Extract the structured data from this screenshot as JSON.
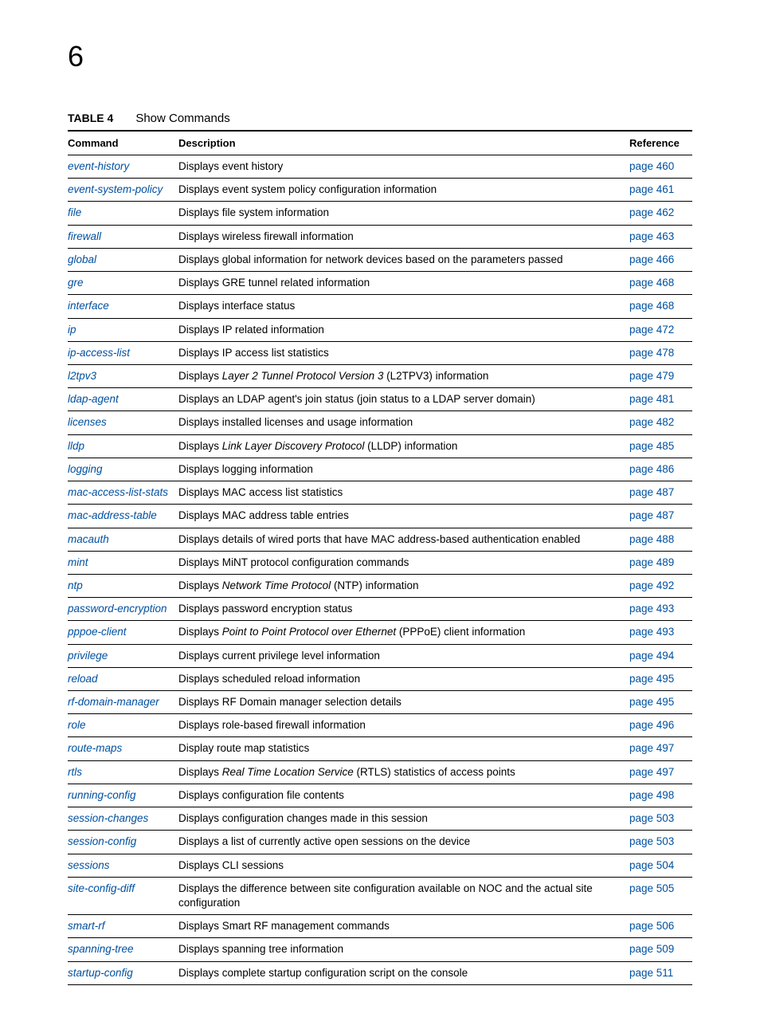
{
  "chapter_number": "6",
  "table_label": "TABLE 4",
  "table_title": "Show Commands",
  "colors": {
    "link_color": "#0050a0",
    "text_color": "#000000",
    "rule_color": "#000000",
    "background_color": "#ffffff"
  },
  "typography": {
    "chapter_fontsize_pt": 28,
    "body_fontsize_pt": 10,
    "header_fontweight": "bold"
  },
  "headers": {
    "command": "Command",
    "description": "Description",
    "reference": "Reference"
  },
  "rows": [
    {
      "cmd": "event-history",
      "desc": [
        {
          "t": "Displays event history"
        }
      ],
      "ref": "page 460"
    },
    {
      "cmd": "event-system-policy",
      "desc": [
        {
          "t": "Displays event system policy configuration information"
        }
      ],
      "ref": "page 461"
    },
    {
      "cmd": "file",
      "desc": [
        {
          "t": "Displays file system information"
        }
      ],
      "ref": "page 462"
    },
    {
      "cmd": "firewall",
      "desc": [
        {
          "t": "Displays wireless firewall information"
        }
      ],
      "ref": "page 463"
    },
    {
      "cmd": "global",
      "desc": [
        {
          "t": "Displays global information for network devices based on the parameters passed"
        }
      ],
      "ref": "page 466"
    },
    {
      "cmd": "gre",
      "desc": [
        {
          "t": "Displays GRE tunnel related information"
        }
      ],
      "ref": "page 468"
    },
    {
      "cmd": "interface",
      "desc": [
        {
          "t": "Displays interface status"
        }
      ],
      "ref": "page 468"
    },
    {
      "cmd": "ip",
      "desc": [
        {
          "t": "Displays IP related information"
        }
      ],
      "ref": "page 472"
    },
    {
      "cmd": "ip-access-list",
      "desc": [
        {
          "t": "Displays IP access list statistics"
        }
      ],
      "ref": "page 478"
    },
    {
      "cmd": "l2tpv3",
      "desc": [
        {
          "t": "Displays "
        },
        {
          "t": "Layer 2 Tunnel Protocol Version 3",
          "i": true
        },
        {
          "t": " (L2TPV3) information"
        }
      ],
      "ref": "page 479"
    },
    {
      "cmd": "ldap-agent",
      "desc": [
        {
          "t": "Displays an LDAP agent's join status (join status to a LDAP server domain)"
        }
      ],
      "ref": "page 481"
    },
    {
      "cmd": "licenses",
      "desc": [
        {
          "t": "Displays installed licenses and usage information"
        }
      ],
      "ref": "page 482"
    },
    {
      "cmd": "lldp",
      "desc": [
        {
          "t": "Displays "
        },
        {
          "t": "Link Layer Discovery Protocol",
          "i": true
        },
        {
          "t": " (LLDP) information"
        }
      ],
      "ref": "page 485"
    },
    {
      "cmd": "logging",
      "desc": [
        {
          "t": "Displays logging information"
        }
      ],
      "ref": "page 486"
    },
    {
      "cmd": "mac-access-list-stats",
      "desc": [
        {
          "t": "Displays MAC access list statistics"
        }
      ],
      "ref": "page 487"
    },
    {
      "cmd": "mac-address-table",
      "desc": [
        {
          "t": "Displays MAC address table entries"
        }
      ],
      "ref": "page 487"
    },
    {
      "cmd": "macauth",
      "desc": [
        {
          "t": "Displays details of wired ports that have MAC address-based authentication enabled"
        }
      ],
      "ref": "page 488"
    },
    {
      "cmd": "mint",
      "desc": [
        {
          "t": "Displays MiNT protocol configuration commands"
        }
      ],
      "ref": "page 489"
    },
    {
      "cmd": "ntp",
      "desc": [
        {
          "t": "Displays "
        },
        {
          "t": "Network Time Protocol",
          "i": true
        },
        {
          "t": " (NTP) information"
        }
      ],
      "ref": "page 492"
    },
    {
      "cmd": "password-encryption",
      "desc": [
        {
          "t": "Displays password encryption status"
        }
      ],
      "ref": "page 493"
    },
    {
      "cmd": "pppoe-client",
      "desc": [
        {
          "t": "Displays "
        },
        {
          "t": "Point to Point Protocol over Ethernet",
          "i": true
        },
        {
          "t": " (PPPoE) client information"
        }
      ],
      "ref": "page 493"
    },
    {
      "cmd": "privilege",
      "desc": [
        {
          "t": "Displays current privilege level information"
        }
      ],
      "ref": "page 494"
    },
    {
      "cmd": "reload",
      "desc": [
        {
          "t": "Displays scheduled reload information"
        }
      ],
      "ref": "page 495"
    },
    {
      "cmd": "rf-domain-manager",
      "desc": [
        {
          "t": "Displays RF Domain manager selection details"
        }
      ],
      "ref": "page 495"
    },
    {
      "cmd": "role",
      "desc": [
        {
          "t": "Displays role-based firewall information"
        }
      ],
      "ref": "page 496"
    },
    {
      "cmd": "route-maps",
      "desc": [
        {
          "t": "Display route map statistics"
        }
      ],
      "ref": "page 497"
    },
    {
      "cmd": "rtls",
      "desc": [
        {
          "t": "Displays "
        },
        {
          "t": "Real Time Location Service",
          "i": true
        },
        {
          "t": " (RTLS) statistics of access points"
        }
      ],
      "ref": "page 497"
    },
    {
      "cmd": "running-config",
      "desc": [
        {
          "t": "Displays configuration file contents"
        }
      ],
      "ref": "page 498"
    },
    {
      "cmd": "session-changes",
      "desc": [
        {
          "t": "Displays configuration changes made in this session"
        }
      ],
      "ref": "page 503"
    },
    {
      "cmd": "session-config",
      "desc": [
        {
          "t": "Displays a list of currently active open sessions on the device"
        }
      ],
      "ref": "page 503"
    },
    {
      "cmd": "sessions",
      "desc": [
        {
          "t": "Displays CLI sessions"
        }
      ],
      "ref": "page 504"
    },
    {
      "cmd": "site-config-diff",
      "desc": [
        {
          "t": "Displays the difference between site configuration available on NOC and the actual site configuration"
        }
      ],
      "ref": "page 505"
    },
    {
      "cmd": "smart-rf",
      "desc": [
        {
          "t": "Displays Smart RF management commands"
        }
      ],
      "ref": "page 506"
    },
    {
      "cmd": "spanning-tree",
      "desc": [
        {
          "t": "Displays spanning tree information"
        }
      ],
      "ref": "page 509"
    },
    {
      "cmd": "startup-config",
      "desc": [
        {
          "t": "Displays complete startup configuration script on the console"
        }
      ],
      "ref": "page 511"
    }
  ]
}
